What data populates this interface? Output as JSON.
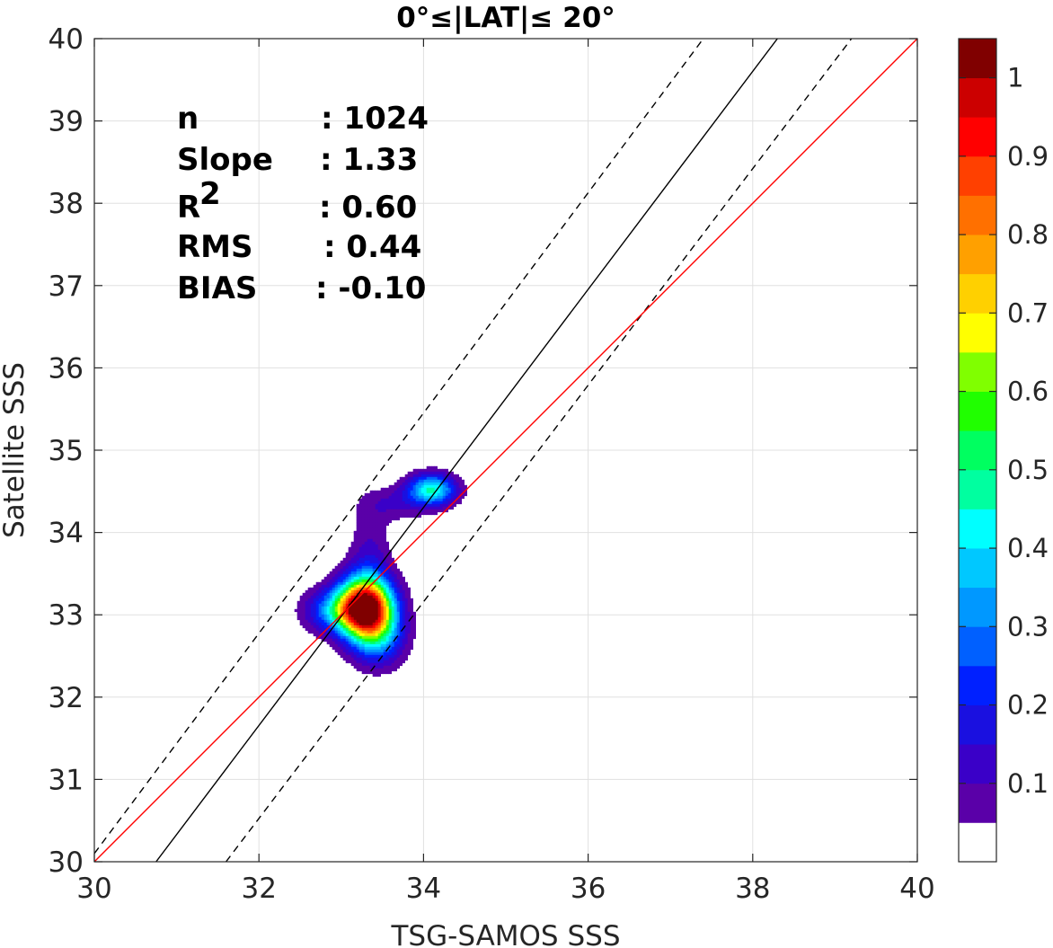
{
  "chart_data": {
    "type": "contour",
    "title": "0°≤|LAT|≤ 20°",
    "xlabel": "TSG-SAMOS SSS",
    "ylabel": "Satellite SSS",
    "xlim": [
      30,
      40
    ],
    "ylim": [
      30,
      40
    ],
    "xticks": [
      "30",
      "32",
      "34",
      "36",
      "38",
      "40"
    ],
    "yticks": [
      "30",
      "31",
      "32",
      "33",
      "34",
      "35",
      "36",
      "37",
      "38",
      "39",
      "40"
    ],
    "grid": true,
    "stats": [
      {
        "label": "n",
        "value": ": 1024"
      },
      {
        "label": "Slope",
        "value": ": 1.33"
      },
      {
        "label": "R",
        "sup": "2",
        "value": ": 0.60"
      },
      {
        "label": "RMS",
        "value": ": 0.44"
      },
      {
        "label": "BIAS",
        "value": ": -0.10"
      }
    ],
    "lines": {
      "one_to_one": {
        "color": "#ff0000",
        "points": [
          [
            30,
            30
          ],
          [
            40,
            40
          ]
        ]
      },
      "fit": {
        "color": "#000000",
        "style": "solid",
        "points": [
          [
            30.75,
            30
          ],
          [
            38.3,
            40
          ]
        ]
      },
      "fit_upper": {
        "color": "#000000",
        "style": "dashed",
        "points": [
          [
            30,
            30.1
          ],
          [
            37.4,
            40
          ]
        ]
      },
      "fit_lower": {
        "color": "#000000",
        "style": "dashed",
        "points": [
          [
            31.6,
            30
          ],
          [
            39.2,
            40
          ]
        ]
      }
    },
    "density": {
      "levels": [
        0.05,
        0.1,
        0.15,
        0.2,
        0.25,
        0.3,
        0.35,
        0.4,
        0.45,
        0.5,
        0.55,
        0.6,
        0.65,
        0.7,
        0.75,
        0.8,
        0.85,
        0.9,
        0.95,
        1.0
      ],
      "peaks": [
        {
          "x": 33.3,
          "y": 33.1,
          "value": 1.0
        },
        {
          "x": 34.1,
          "y": 34.5,
          "value": 0.45
        },
        {
          "x": 33.35,
          "y": 33.9,
          "value": 0.13
        },
        {
          "x": 33.6,
          "y": 34.4,
          "value": 0.1
        }
      ]
    },
    "colorbar": {
      "ticks": [
        "0.1",
        "0.2",
        "0.3",
        "0.4",
        "0.5",
        "0.6",
        "0.7",
        "0.8",
        "0.9",
        "1"
      ],
      "colors": [
        "#ffffff",
        "#5a00a8",
        "#3a00c8",
        "#1a10e0",
        "#0020ff",
        "#0060ff",
        "#0098ff",
        "#00c8ff",
        "#00ffff",
        "#00ffa0",
        "#00ff60",
        "#20ff00",
        "#80ff00",
        "#ffff00",
        "#ffd000",
        "#ffa000",
        "#ff7000",
        "#ff4000",
        "#ff0000",
        "#cc0000",
        "#800000"
      ]
    }
  }
}
